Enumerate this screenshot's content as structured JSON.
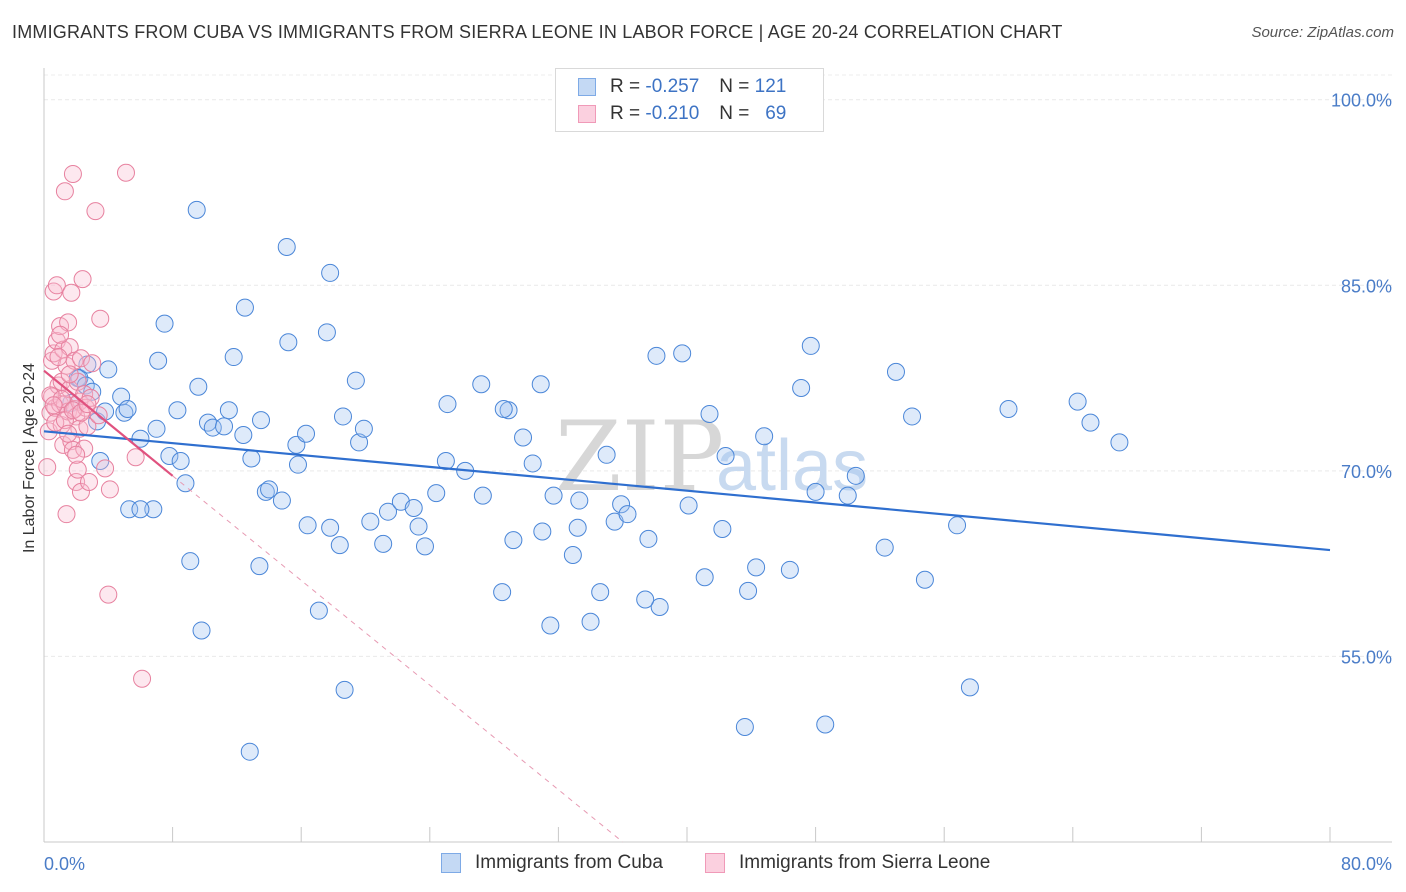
{
  "title": "IMMIGRANTS FROM CUBA VS IMMIGRANTS FROM SIERRA LEONE IN LABOR FORCE | AGE 20-24 CORRELATION CHART",
  "source": "Source: ZipAtlas.com",
  "watermark": {
    "zip": "ZIP",
    "atlas": "atlas"
  },
  "legend": {
    "rows": [
      {
        "r_label": "R =",
        "r_value": "-0.257",
        "n_label": "N =",
        "n_value": "121",
        "color": "#7eaae6",
        "fill": "#c4d9f4"
      },
      {
        "r_label": "R =",
        "r_value": "-0.210",
        "n_label": "N =",
        "n_value": "69",
        "color": "#f09ab8",
        "fill": "#fbd0df"
      }
    ]
  },
  "bottom_legend": {
    "cuba": "Immigrants from Cuba",
    "sierra": "Immigrants from Sierra Leone"
  },
  "chart_data": {
    "type": "scatter",
    "title": "IMMIGRANTS FROM CUBA VS IMMIGRANTS FROM SIERRA LEONE IN LABOR FORCE | AGE 20-24 CORRELATION CHART",
    "xlabel": "",
    "ylabel": "In Labor Force | Age 20-24",
    "xlim": [
      0,
      80
    ],
    "ylim": [
      40,
      102
    ],
    "x_tick_labels": [
      "0.0%",
      "80.0%"
    ],
    "y_ticks": [
      55,
      70,
      85,
      100
    ],
    "y_tick_labels": [
      "55.0%",
      "70.0%",
      "85.0%",
      "100.0%"
    ],
    "grid": true,
    "series": [
      {
        "name": "Immigrants from Cuba",
        "color": "#4a86d8",
        "fill": "rgba(160,196,240,0.35)",
        "trend": {
          "x0": 0.0,
          "y0": 73.2,
          "x1": 80.0,
          "y1": 63.6,
          "color": "#2f6fcf"
        },
        "points": [
          [
            4.0,
            78.2
          ],
          [
            5.0,
            74.7
          ],
          [
            6.0,
            72.6
          ],
          [
            5.3,
            66.9
          ],
          [
            6.8,
            66.9
          ],
          [
            7.0,
            73.4
          ],
          [
            7.8,
            71.2
          ],
          [
            8.3,
            74.9
          ],
          [
            9.6,
            76.8
          ],
          [
            9.1,
            62.7
          ],
          [
            9.8,
            57.1
          ],
          [
            10.2,
            73.9
          ],
          [
            10.5,
            73.5
          ],
          [
            11.2,
            73.6
          ],
          [
            11.5,
            74.9
          ],
          [
            12.4,
            72.9
          ],
          [
            12.9,
            71.0
          ],
          [
            13.4,
            62.3
          ],
          [
            13.8,
            68.3
          ],
          [
            15.1,
            88.1
          ],
          [
            15.2,
            80.4
          ],
          [
            15.7,
            72.1
          ],
          [
            15.8,
            70.5
          ],
          [
            16.4,
            65.6
          ],
          [
            17.1,
            58.7
          ],
          [
            17.8,
            65.4
          ],
          [
            18.4,
            64.0
          ],
          [
            18.6,
            74.4
          ],
          [
            19.4,
            77.3
          ],
          [
            19.6,
            72.3
          ],
          [
            20.3,
            65.9
          ],
          [
            21.4,
            66.7
          ],
          [
            21.1,
            64.1
          ],
          [
            22.2,
            67.5
          ],
          [
            23.0,
            67.0
          ],
          [
            23.3,
            65.5
          ],
          [
            24.4,
            68.2
          ],
          [
            25.1,
            75.4
          ],
          [
            26.2,
            70.0
          ],
          [
            27.2,
            77.0
          ],
          [
            28.5,
            60.2
          ],
          [
            28.9,
            74.9
          ],
          [
            29.2,
            64.4
          ],
          [
            29.8,
            72.7
          ],
          [
            30.4,
            70.6
          ],
          [
            30.9,
            77.0
          ],
          [
            31.0,
            65.1
          ],
          [
            31.7,
            68.0
          ],
          [
            32.9,
            63.2
          ],
          [
            33.3,
            67.6
          ],
          [
            34.0,
            57.8
          ],
          [
            35.0,
            71.3
          ],
          [
            35.5,
            65.9
          ],
          [
            35.9,
            67.3
          ],
          [
            36.3,
            66.5
          ],
          [
            37.6,
            64.5
          ],
          [
            38.1,
            79.3
          ],
          [
            38.3,
            59.0
          ],
          [
            39.7,
            79.5
          ],
          [
            40.1,
            67.2
          ],
          [
            41.1,
            61.4
          ],
          [
            41.4,
            74.6
          ],
          [
            42.2,
            65.3
          ],
          [
            42.4,
            71.2
          ],
          [
            43.6,
            49.3
          ],
          [
            43.8,
            60.3
          ],
          [
            44.3,
            62.2
          ],
          [
            44.8,
            72.8
          ],
          [
            46.4,
            62.0
          ],
          [
            47.1,
            76.7
          ],
          [
            47.7,
            80.1
          ],
          [
            48.0,
            68.3
          ],
          [
            48.6,
            49.5
          ],
          [
            50.0,
            68.0
          ],
          [
            50.5,
            69.6
          ],
          [
            52.3,
            63.8
          ],
          [
            53.0,
            78.0
          ],
          [
            54.0,
            74.4
          ],
          [
            54.8,
            61.2
          ],
          [
            56.8,
            65.6
          ],
          [
            57.6,
            52.5
          ],
          [
            60.0,
            75.0
          ],
          [
            64.3,
            75.6
          ],
          [
            65.1,
            73.9
          ],
          [
            66.9,
            72.3
          ],
          [
            1.7,
            75.5
          ],
          [
            2.1,
            77.5
          ],
          [
            2.2,
            77.5
          ],
          [
            2.6,
            76.9
          ],
          [
            2.7,
            78.6
          ],
          [
            3.0,
            76.4
          ],
          [
            3.3,
            74.0
          ],
          [
            3.5,
            70.8
          ],
          [
            3.8,
            74.8
          ],
          [
            4.8,
            76.0
          ],
          [
            5.2,
            75.0
          ],
          [
            6.0,
            66.9
          ],
          [
            7.1,
            78.9
          ],
          [
            7.5,
            81.9
          ],
          [
            8.5,
            70.8
          ],
          [
            8.8,
            69.0
          ],
          [
            9.5,
            91.1
          ],
          [
            11.8,
            79.2
          ],
          [
            12.5,
            83.2
          ],
          [
            13.5,
            74.1
          ],
          [
            14.0,
            68.5
          ],
          [
            14.8,
            67.6
          ],
          [
            16.3,
            73.0
          ],
          [
            17.6,
            81.2
          ],
          [
            17.8,
            86.0
          ],
          [
            18.7,
            52.3
          ],
          [
            19.9,
            73.4
          ],
          [
            23.7,
            63.9
          ],
          [
            25.0,
            70.8
          ],
          [
            27.3,
            68.0
          ],
          [
            28.6,
            75.0
          ],
          [
            31.5,
            57.5
          ],
          [
            33.2,
            65.4
          ],
          [
            34.6,
            60.2
          ],
          [
            37.4,
            59.6
          ],
          [
            12.8,
            47.3
          ]
        ]
      },
      {
        "name": "Immigrants from Sierra Leone",
        "color": "#e7819f",
        "fill": "rgba(248,190,210,0.35)",
        "trend": {
          "x0": 0.0,
          "y0": 78.1,
          "x1": 8.0,
          "y1": 69.6,
          "color": "#e0527f"
        },
        "trend_ext": {
          "x0": 8.0,
          "y0": 69.6,
          "x1": 36.0,
          "y1": 40.0,
          "color": "#e79ab3"
        },
        "points": [
          [
            0.2,
            70.3
          ],
          [
            0.3,
            73.2
          ],
          [
            0.4,
            74.7
          ],
          [
            0.5,
            76.0
          ],
          [
            0.5,
            78.9
          ],
          [
            0.6,
            79.5
          ],
          [
            0.6,
            84.5
          ],
          [
            0.7,
            75.1
          ],
          [
            0.8,
            80.5
          ],
          [
            0.8,
            85.0
          ],
          [
            0.9,
            76.9
          ],
          [
            1.0,
            75.4
          ],
          [
            1.0,
            81.7
          ],
          [
            1.1,
            73.7
          ],
          [
            1.1,
            77.2
          ],
          [
            1.2,
            72.1
          ],
          [
            1.2,
            79.8
          ],
          [
            1.3,
            92.6
          ],
          [
            1.3,
            75.4
          ],
          [
            1.4,
            66.5
          ],
          [
            1.4,
            78.5
          ],
          [
            1.5,
            74.8
          ],
          [
            1.5,
            82.0
          ],
          [
            1.6,
            80.0
          ],
          [
            1.6,
            76.6
          ],
          [
            1.7,
            84.4
          ],
          [
            1.7,
            72.4
          ],
          [
            1.8,
            94.0
          ],
          [
            1.8,
            71.7
          ],
          [
            1.9,
            75.0
          ],
          [
            1.9,
            78.9
          ],
          [
            2.0,
            69.1
          ],
          [
            2.0,
            74.4
          ],
          [
            2.1,
            77.2
          ],
          [
            2.1,
            70.1
          ],
          [
            2.2,
            73.4
          ],
          [
            2.2,
            75.6
          ],
          [
            2.3,
            68.3
          ],
          [
            2.3,
            79.1
          ],
          [
            2.4,
            85.5
          ],
          [
            2.5,
            71.8
          ],
          [
            2.5,
            76.2
          ],
          [
            2.6,
            75.1
          ],
          [
            2.7,
            73.6
          ],
          [
            2.8,
            69.1
          ],
          [
            2.9,
            75.9
          ],
          [
            3.0,
            78.7
          ],
          [
            3.2,
            91.0
          ],
          [
            3.4,
            74.5
          ],
          [
            3.5,
            82.3
          ],
          [
            3.8,
            70.2
          ],
          [
            4.0,
            60.0
          ],
          [
            4.1,
            68.5
          ],
          [
            5.1,
            94.1
          ],
          [
            5.7,
            71.1
          ],
          [
            6.1,
            53.2
          ],
          [
            0.4,
            76.1
          ],
          [
            0.7,
            73.9
          ],
          [
            0.9,
            79.2
          ],
          [
            1.1,
            75.8
          ],
          [
            1.3,
            74.1
          ],
          [
            1.6,
            77.8
          ],
          [
            1.8,
            74.9
          ],
          [
            2.0,
            71.3
          ],
          [
            2.3,
            74.7
          ],
          [
            1.0,
            81.0
          ],
          [
            0.6,
            75.3
          ],
          [
            1.5,
            73.0
          ],
          [
            2.7,
            75.4
          ]
        ]
      }
    ]
  }
}
